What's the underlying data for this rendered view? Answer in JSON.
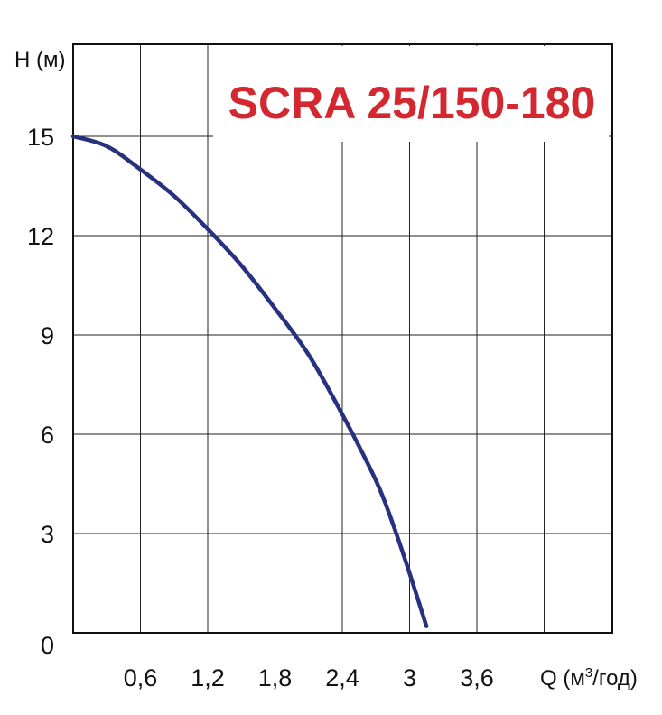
{
  "chart_data": {
    "type": "line",
    "title": "SCRA 25/150-180",
    "ylabel": "H (м)",
    "xlabel_prefix": "Q (м",
    "xlabel_sup": "3",
    "xlabel_suffix": "/год)",
    "xlim": [
      0,
      4.8
    ],
    "ylim": [
      0,
      18
    ],
    "x_ticks": [
      0.6,
      1.2,
      1.8,
      2.4,
      3,
      3.6
    ],
    "x_tick_labels": [
      "0,6",
      "1,2",
      "1,8",
      "2,4",
      "3",
      "3,6"
    ],
    "y_ticks": [
      0,
      3,
      6,
      9,
      12,
      15
    ],
    "y_tick_labels": [
      "0",
      "3",
      "6",
      "9",
      "12",
      "15"
    ],
    "grid": true,
    "series": [
      {
        "color": "#27317f",
        "points": [
          [
            0,
            15.0
          ],
          [
            0.3,
            14.7
          ],
          [
            0.6,
            14.0
          ],
          [
            0.9,
            13.2
          ],
          [
            1.2,
            12.2
          ],
          [
            1.5,
            11.1
          ],
          [
            1.8,
            9.8
          ],
          [
            2.1,
            8.4
          ],
          [
            2.4,
            6.6
          ],
          [
            2.7,
            4.6
          ],
          [
            2.85,
            3.3
          ],
          [
            3.0,
            1.8
          ],
          [
            3.15,
            0.2
          ]
        ]
      }
    ]
  }
}
